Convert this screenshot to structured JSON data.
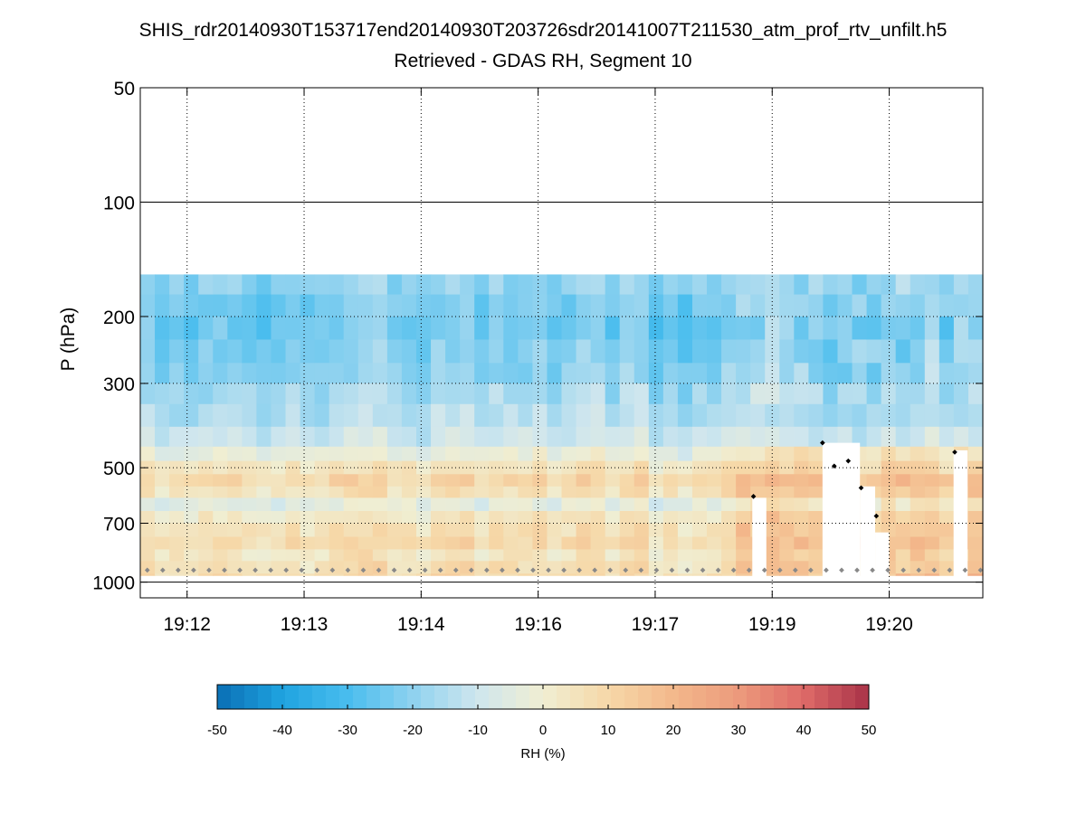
{
  "page": {
    "title_line1": "SHIS_rdr20140930T153717end20140930T203726sdr20141007T211530_atm_prof_rtv_unfilt.h5",
    "title_line2": "Retrieved - GDAS RH, Segment 10"
  },
  "chart_data": {
    "type": "heatmap",
    "title": "SHIS_rdr20140930T153717end20140930T203726sdr20141007T211530_atm_prof_rtv_unfilt.h5",
    "subtitle": "Retrieved - GDAS RH, Segment 10",
    "xlabel": "",
    "ylabel": "P (hPa)",
    "x_tick_labels": [
      "19:12",
      "19:13",
      "19:14",
      "19:16",
      "19:17",
      "19:19",
      "19:20"
    ],
    "x_tick_minutes": [
      0.4,
      1.4,
      2.4,
      3.4,
      4.4,
      5.4,
      6.4
    ],
    "xlim_minutes": [
      0,
      7.2
    ],
    "y_scale": "log",
    "y_reversed": true,
    "ylim": [
      50,
      1100
    ],
    "y_ticks": [
      50,
      100,
      200,
      300,
      500,
      700,
      1000
    ],
    "y_tick_labels": [
      "50",
      "100",
      "200",
      "300",
      "500",
      "700",
      "1000"
    ],
    "grid": "dotted",
    "solid_reference_lines_hpa": [
      100,
      1000
    ],
    "colorbar": {
      "label": "RH (%)",
      "range": [
        -50,
        50
      ],
      "ticks": [
        -50,
        -40,
        -30,
        -20,
        -10,
        0,
        10,
        20,
        30,
        40,
        50
      ],
      "tick_labels": [
        "-50",
        "-40",
        "-30",
        "-20",
        "-10",
        "0",
        "10",
        "20",
        "30",
        "40",
        "50"
      ],
      "colors": [
        "#0a6fb4",
        "#1fa3e0",
        "#49bdee",
        "#8fd2ef",
        "#cfe6ee",
        "#f0eed2",
        "#f6d8a8",
        "#f3b88b",
        "#ec9a7c",
        "#de6a68",
        "#a83248"
      ]
    },
    "data_top_hpa": 155,
    "n_columns": 58,
    "levels_hpa": [
      155,
      175,
      200,
      230,
      265,
      300,
      340,
      390,
      440,
      480,
      520,
      560,
      600,
      650,
      700,
      760,
      820,
      880,
      950
    ],
    "profile_values_rh_diff": [
      -20,
      -23,
      -24,
      -22,
      -21,
      -17,
      -15,
      -10,
      -3,
      4,
      9,
      5,
      -4,
      3,
      6,
      8,
      4,
      6,
      8
    ],
    "masked_columns": [
      {
        "start_minute": 5.23,
        "end_minute": 5.35,
        "top_hpa": 600
      },
      {
        "start_minute": 5.83,
        "end_minute": 6.15,
        "top_hpa": 430
      },
      {
        "start_minute": 6.15,
        "end_minute": 6.28,
        "top_hpa": 560
      },
      {
        "start_minute": 6.28,
        "end_minute": 6.4,
        "top_hpa": 740
      },
      {
        "start_minute": 6.95,
        "end_minute": 7.07,
        "top_hpa": 450
      }
    ],
    "surface_markers_hpa": 930,
    "cloud_top_markers": [
      {
        "minute": 5.24,
        "hpa": 595
      },
      {
        "minute": 5.83,
        "hpa": 430
      },
      {
        "minute": 5.93,
        "hpa": 495
      },
      {
        "minute": 6.05,
        "hpa": 480
      },
      {
        "minute": 6.16,
        "hpa": 565
      },
      {
        "minute": 6.29,
        "hpa": 670
      },
      {
        "minute": 6.96,
        "hpa": 455
      }
    ]
  }
}
